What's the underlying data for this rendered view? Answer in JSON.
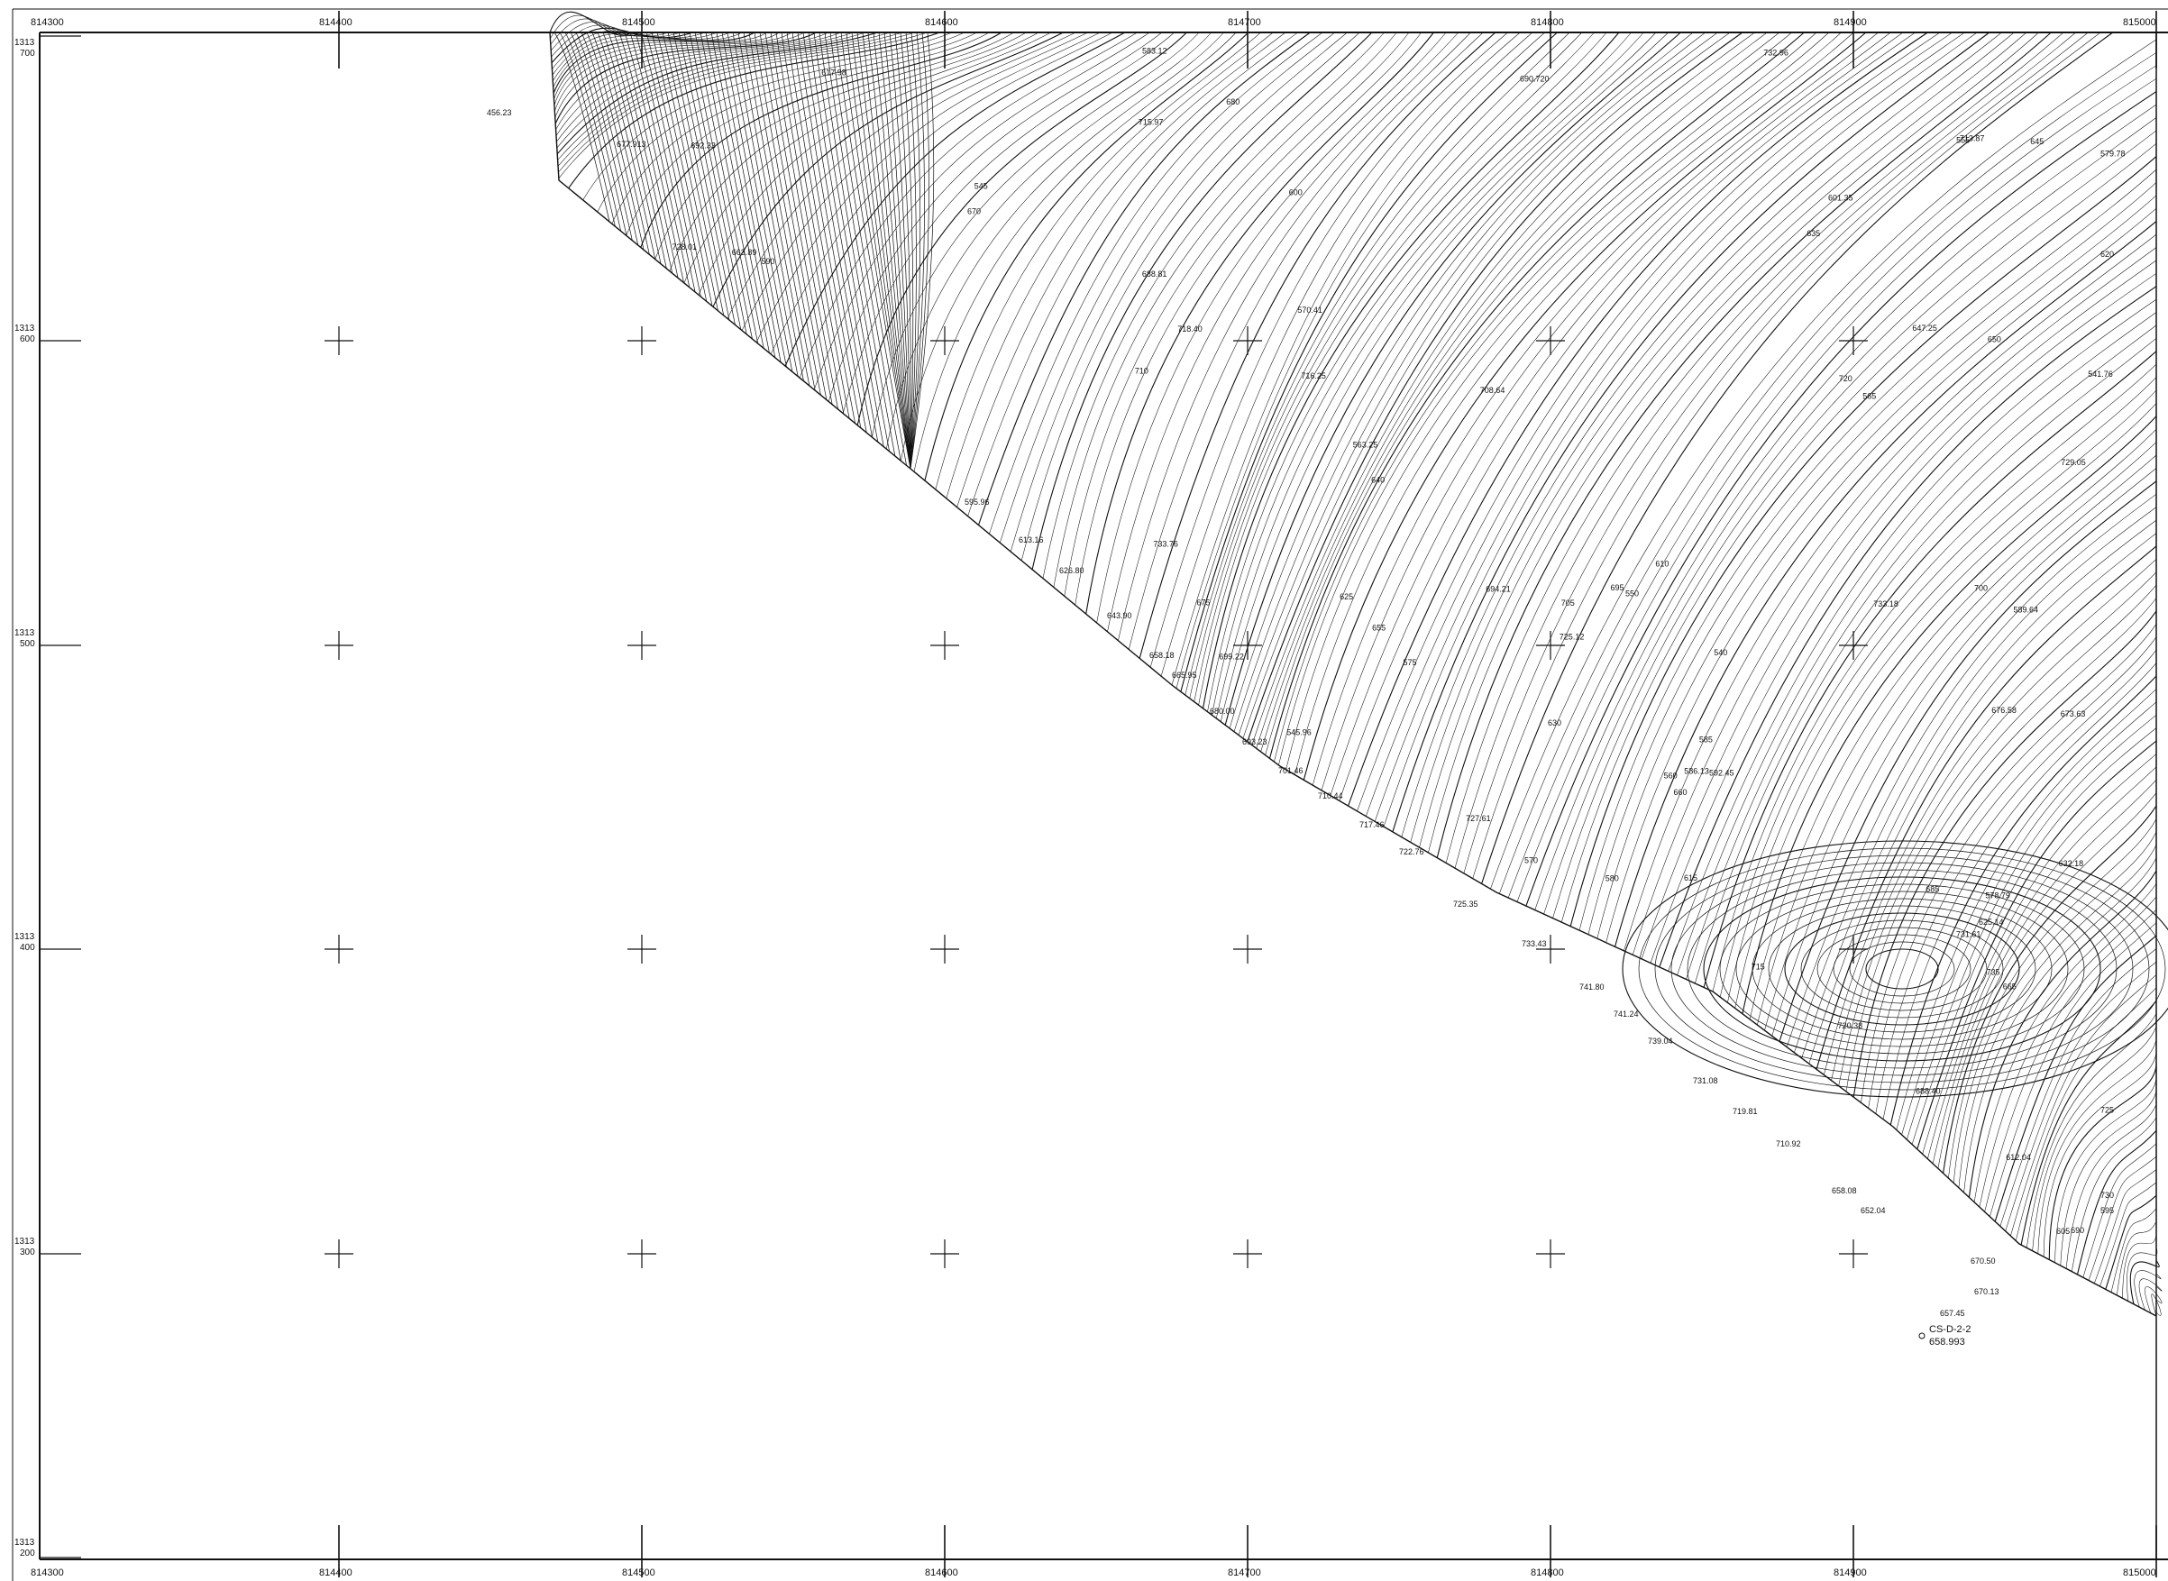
{
  "map": {
    "kind": "topographic contour survey sheet",
    "ink_color": "#111111",
    "paper_color": "#ffffff",
    "top_easting_labels": [
      "814300",
      "814400",
      "814500",
      "814600",
      "814700",
      "814800",
      "814900",
      "815000"
    ],
    "bottom_easting_labels": [
      "814300",
      "814400",
      "814500",
      "814600",
      "814700",
      "814800",
      "814900",
      "815000"
    ],
    "left_northing_labels": [
      {
        "top": "1313",
        "bottom": "700"
      },
      {
        "top": "1313",
        "bottom": "600"
      },
      {
        "top": "1313",
        "bottom": "500"
      },
      {
        "top": "1313",
        "bottom": "400"
      },
      {
        "top": "1313",
        "bottom": "300"
      },
      {
        "top": "1313",
        "bottom": "200"
      }
    ],
    "station_id": "CS-D-2-2",
    "station_elevation": "658.993",
    "edge_spot_heights": [
      "456.23",
      "595.96",
      "613.16",
      "626.80",
      "643.90",
      "658.18",
      "665.95",
      "680.00",
      "693.23",
      "701.46",
      "710.44",
      "717.46",
      "722.76",
      "725.35",
      "733.43",
      "741.80",
      "741.24",
      "739.04",
      "731.08",
      "719.81",
      "710.92",
      "658.08",
      "652.04",
      "670.50",
      "670.13",
      "657.45"
    ],
    "interior_spot_heights": [
      "540",
      "545",
      "550",
      "555",
      "560",
      "565",
      "570",
      "575",
      "580",
      "585",
      "590",
      "595",
      "600",
      "605",
      "610",
      "615",
      "620",
      "625",
      "630",
      "635",
      "640",
      "645",
      "650",
      "655",
      "660",
      "665",
      "670",
      "675",
      "680",
      "685",
      "690",
      "695",
      "700",
      "705",
      "710",
      "715",
      "720",
      "725",
      "730",
      "735",
      "545.96",
      "563.25",
      "570.41",
      "578.79",
      "541.76",
      "583.12",
      "586.13",
      "579.78",
      "589.64",
      "592.45",
      "601.35",
      "612.04",
      "617.98",
      "625.14",
      "632.18",
      "647.25",
      "663.89",
      "677.913",
      "676.58",
      "688.40",
      "699.22",
      "708.64",
      "715.97",
      "718.40",
      "720.38",
      "728.01",
      "727.61",
      "733.76",
      "725.12",
      "732.96",
      "733.18",
      "729.05",
      "731.61",
      "716.25",
      "713.87",
      "692.33",
      "688.81",
      "690.720",
      "694.21",
      "673.63"
    ],
    "contour_interval_note": "",
    "north_arrow": "none"
  }
}
